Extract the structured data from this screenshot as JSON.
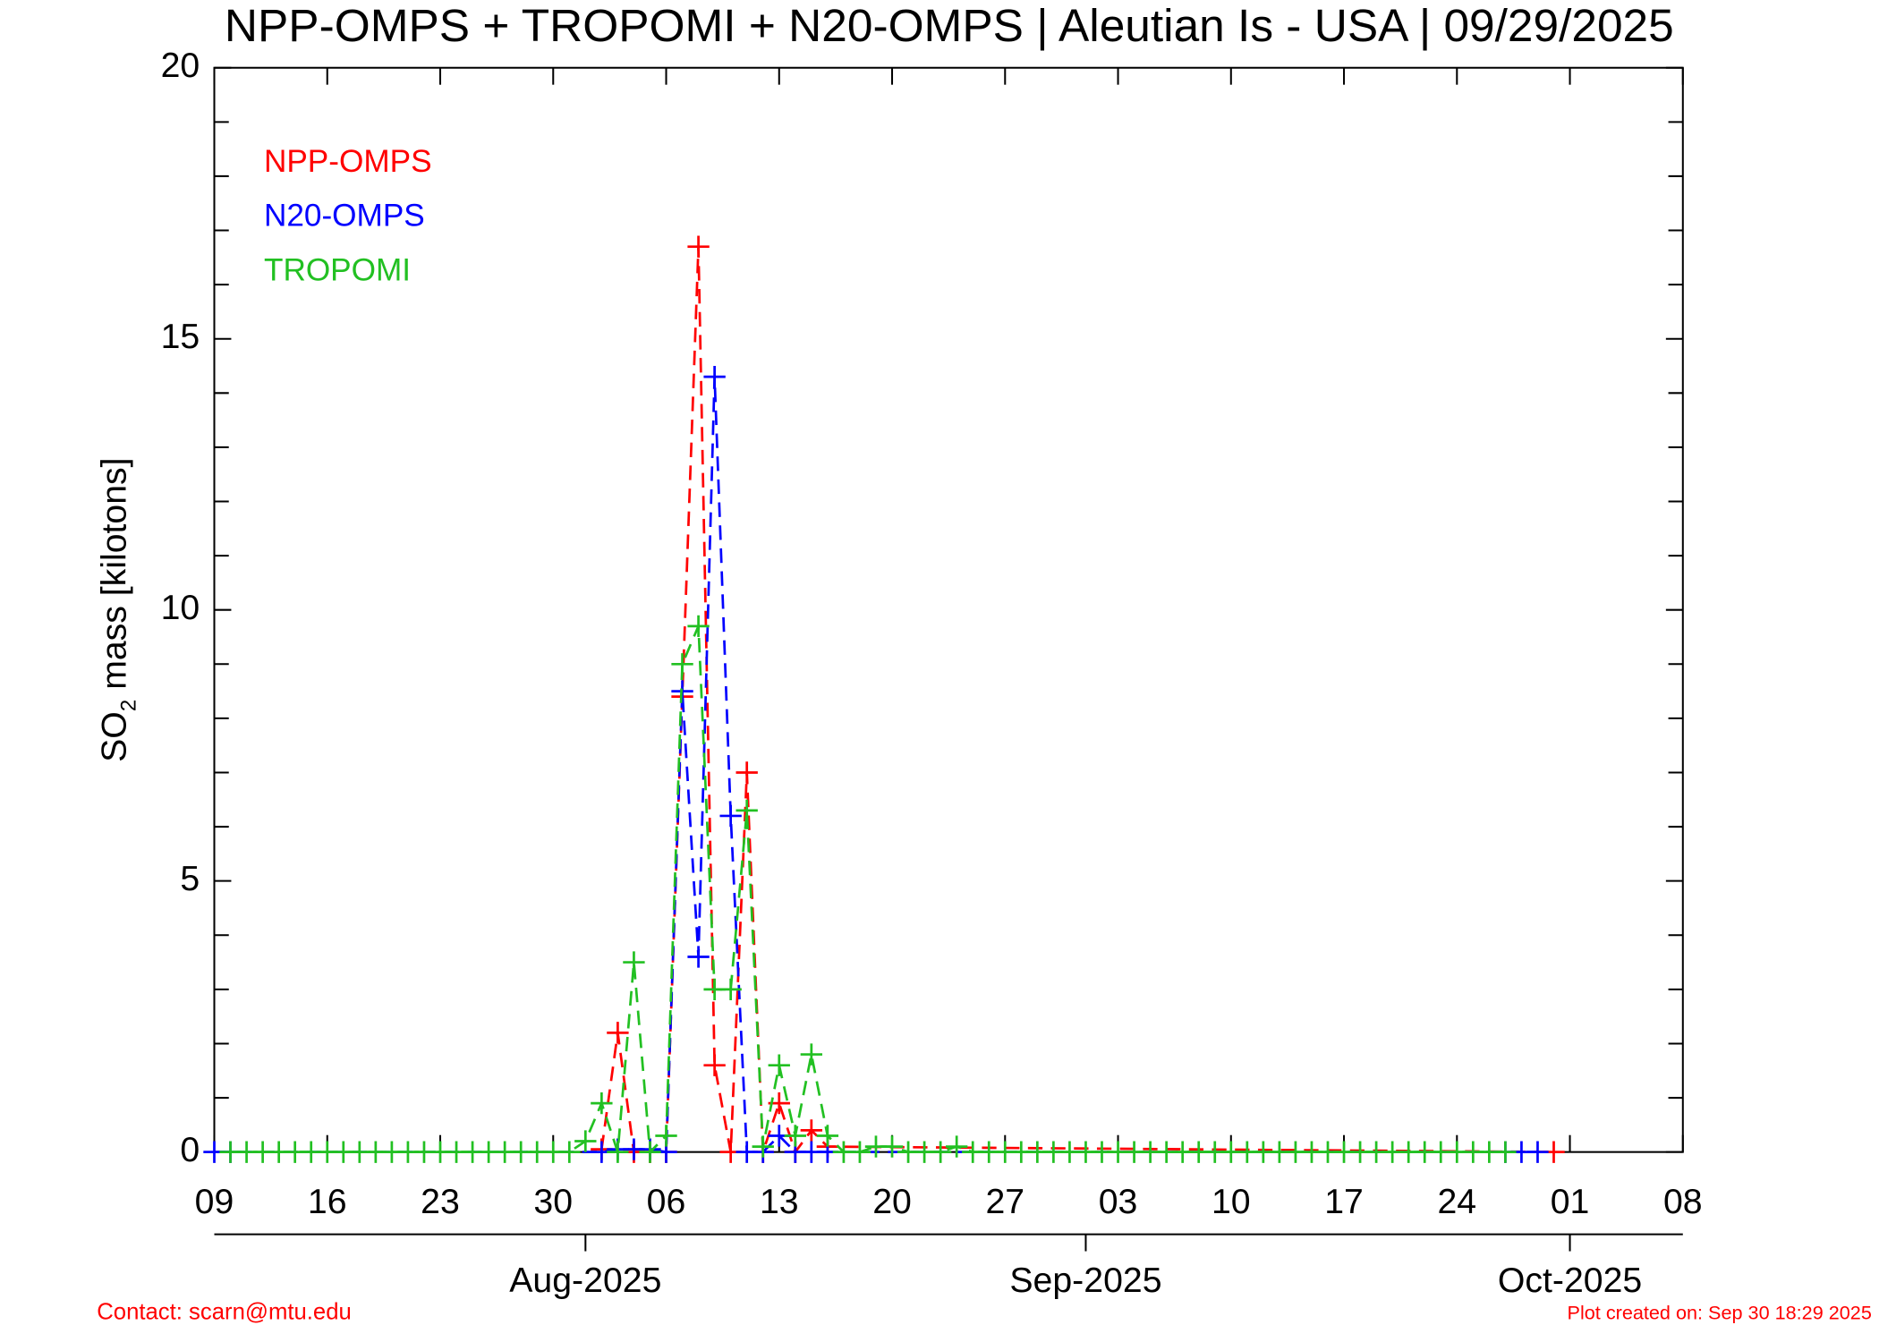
{
  "chart_data": {
    "type": "line",
    "title": "NPP-OMPS + TROPOMI + N20-OMPS | Aleutian Is - USA | 09/29/2025",
    "ylabel_parts": [
      "SO",
      "2",
      " mass [kilotons]"
    ],
    "footer_left": "Contact: scarn@mtu.edu",
    "footer_right": "Plot created on: Sep 30 18:29 2025",
    "xlim": [
      "2025-07-09",
      "2025-10-08"
    ],
    "xticks": [
      {
        "value": "2025-07-09",
        "label": "09"
      },
      {
        "value": "2025-07-16",
        "label": "16"
      },
      {
        "value": "2025-07-23",
        "label": "23"
      },
      {
        "value": "2025-07-30",
        "label": "30"
      },
      {
        "value": "2025-08-06",
        "label": "06"
      },
      {
        "value": "2025-08-13",
        "label": "13"
      },
      {
        "value": "2025-08-20",
        "label": "20"
      },
      {
        "value": "2025-08-27",
        "label": "27"
      },
      {
        "value": "2025-09-03",
        "label": "03"
      },
      {
        "value": "2025-09-10",
        "label": "10"
      },
      {
        "value": "2025-09-17",
        "label": "17"
      },
      {
        "value": "2025-09-24",
        "label": "24"
      },
      {
        "value": "2025-10-01",
        "label": "01"
      },
      {
        "value": "2025-10-08",
        "label": "08"
      }
    ],
    "month_ticks": [
      {
        "value": "2025-08-01",
        "label": "Aug-2025"
      },
      {
        "value": "2025-09-01",
        "label": "Sep-2025"
      },
      {
        "value": "2025-10-01",
        "label": "Oct-2025"
      }
    ],
    "ylim": [
      0,
      20
    ],
    "yticks": [
      0,
      5,
      10,
      15,
      20
    ],
    "yminorticks": [
      1,
      2,
      3,
      4,
      6,
      7,
      8,
      9,
      11,
      12,
      13,
      14,
      16,
      17,
      18,
      19
    ],
    "legend": "top-left",
    "series": [
      {
        "name": "NPP-OMPS",
        "color": "#ff0000",
        "x": [
          "2025-08-02",
          "2025-08-03",
          "2025-08-04",
          "2025-08-05",
          "2025-08-06",
          "2025-08-07",
          "2025-08-08",
          "2025-08-09",
          "2025-08-10",
          "2025-08-11",
          "2025-08-12",
          "2025-08-13",
          "2025-08-14",
          "2025-08-15",
          "2025-08-16",
          "2025-09-30"
        ],
        "values": [
          0.05,
          2.2,
          0,
          0,
          0,
          8.4,
          16.7,
          1.6,
          0,
          7.0,
          0,
          0.9,
          0,
          0.4,
          0.1,
          0
        ]
      },
      {
        "name": "N20-OMPS",
        "color": "#0000ff",
        "x": [
          "2025-07-09",
          "2025-07-10",
          "2025-08-02",
          "2025-08-03",
          "2025-08-04",
          "2025-08-05",
          "2025-08-06",
          "2025-08-07",
          "2025-08-08",
          "2025-08-09",
          "2025-08-10",
          "2025-08-11",
          "2025-08-12",
          "2025-08-13",
          "2025-08-14",
          "2025-08-15",
          "2025-08-16",
          "2025-09-27",
          "2025-09-28",
          "2025-09-29"
        ],
        "values": [
          0,
          0,
          0,
          0.05,
          0.05,
          0.05,
          0,
          8.5,
          3.6,
          14.3,
          6.2,
          0,
          0,
          0.3,
          0,
          0,
          0,
          0,
          0,
          0
        ]
      },
      {
        "name": "TROPOMI",
        "color": "#22c022",
        "x": [
          "2025-07-10",
          "2025-07-11",
          "2025-07-12",
          "2025-07-13",
          "2025-07-14",
          "2025-07-15",
          "2025-07-16",
          "2025-07-17",
          "2025-07-18",
          "2025-07-19",
          "2025-07-20",
          "2025-07-21",
          "2025-07-22",
          "2025-07-23",
          "2025-07-24",
          "2025-07-25",
          "2025-07-26",
          "2025-07-27",
          "2025-07-28",
          "2025-07-29",
          "2025-07-30",
          "2025-07-31",
          "2025-08-01",
          "2025-08-02",
          "2025-08-03",
          "2025-08-04",
          "2025-08-05",
          "2025-08-06",
          "2025-08-07",
          "2025-08-08",
          "2025-08-09",
          "2025-08-10",
          "2025-08-11",
          "2025-08-12",
          "2025-08-13",
          "2025-08-14",
          "2025-08-15",
          "2025-08-16",
          "2025-08-17",
          "2025-08-18",
          "2025-08-19",
          "2025-08-20",
          "2025-08-21",
          "2025-08-22",
          "2025-08-23",
          "2025-08-24",
          "2025-08-25",
          "2025-08-26",
          "2025-08-27",
          "2025-08-28",
          "2025-08-29",
          "2025-08-30",
          "2025-08-31",
          "2025-09-01",
          "2025-09-02",
          "2025-09-03",
          "2025-09-04",
          "2025-09-05",
          "2025-09-06",
          "2025-09-07",
          "2025-09-08",
          "2025-09-09",
          "2025-09-10",
          "2025-09-11",
          "2025-09-12",
          "2025-09-13",
          "2025-09-14",
          "2025-09-15",
          "2025-09-16",
          "2025-09-17",
          "2025-09-18",
          "2025-09-19",
          "2025-09-20",
          "2025-09-21",
          "2025-09-22",
          "2025-09-23",
          "2025-09-24",
          "2025-09-25",
          "2025-09-26",
          "2025-09-27"
        ],
        "values": [
          0,
          0,
          0,
          0,
          0,
          0,
          0,
          0,
          0,
          0,
          0,
          0,
          0,
          0,
          0,
          0,
          0,
          0,
          0,
          0,
          0,
          0,
          0.2,
          0.9,
          0,
          3.5,
          0,
          0.3,
          9.0,
          9.7,
          3.0,
          3.0,
          6.3,
          0.1,
          1.6,
          0.3,
          1.8,
          0.3,
          0,
          0,
          0.1,
          0.1,
          0,
          0,
          0,
          0.1,
          0,
          0,
          0,
          0,
          0,
          0,
          0,
          0,
          0,
          0,
          0,
          0,
          0,
          0,
          0,
          0,
          0,
          0,
          0,
          0,
          0,
          0,
          0,
          0,
          0,
          0,
          0,
          0,
          0,
          0,
          0,
          0,
          0,
          0
        ]
      }
    ]
  }
}
